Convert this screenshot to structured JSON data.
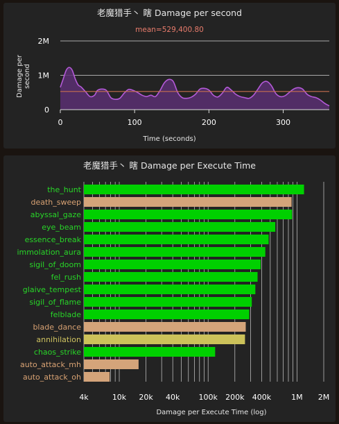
{
  "chart_data": [
    {
      "type": "area",
      "title": "老魔猎手丶 瞎 Damage per second",
      "subtitle_prefix": "mean=",
      "mean_text": "529,400.80",
      "mean": 529400.8,
      "xlabel": "Time (seconds)",
      "ylabel": "Damage per second",
      "xlim": [
        0,
        362
      ],
      "ylim": [
        0,
        2000000
      ],
      "x_ticks": [
        0,
        100,
        200,
        300
      ],
      "x_tick_labels": [
        "0",
        "100",
        "200",
        "300"
      ],
      "y_ticks": [
        0,
        1000000,
        2000000
      ],
      "y_tick_labels": [
        "0",
        "1M",
        "2M"
      ],
      "grid": "horizontal",
      "colors": {
        "line": "#b45ad8",
        "fill": "#5a2f72",
        "mean": "#c8704f",
        "grid": "#d9d9d9"
      },
      "x": [
        0,
        4,
        8,
        12,
        16,
        20,
        24,
        28,
        34,
        40,
        46,
        50,
        56,
        62,
        68,
        74,
        80,
        86,
        92,
        98,
        104,
        110,
        116,
        122,
        128,
        134,
        140,
        146,
        152,
        158,
        164,
        170,
        176,
        182,
        188,
        194,
        200,
        206,
        212,
        218,
        224,
        230,
        236,
        242,
        248,
        254,
        260,
        266,
        272,
        278,
        284,
        290,
        296,
        302,
        308,
        314,
        320,
        326,
        332,
        338,
        344,
        350,
        356,
        362
      ],
      "y": [
        650000,
        900000,
        1150000,
        1230000,
        1150000,
        900000,
        720000,
        660000,
        520000,
        380000,
        420000,
        560000,
        600000,
        560000,
        350000,
        300000,
        330000,
        480000,
        590000,
        560000,
        500000,
        420000,
        380000,
        420000,
        380000,
        550000,
        780000,
        880000,
        820000,
        500000,
        350000,
        330000,
        360000,
        450000,
        600000,
        620000,
        570000,
        420000,
        370000,
        480000,
        650000,
        570000,
        450000,
        380000,
        350000,
        330000,
        420000,
        600000,
        780000,
        820000,
        700000,
        470000,
        380000,
        400000,
        500000,
        600000,
        640000,
        600000,
        450000,
        380000,
        350000,
        280000,
        180000,
        110000
      ]
    },
    {
      "type": "bar",
      "orientation": "horizontal",
      "title": "老魔猎手丶 瞎 Damage per Execute Time",
      "xlabel": "Damage per Execute Time (log)",
      "xscale": "log",
      "xlim": [
        4000,
        2000000
      ],
      "x_ticks": [
        4000,
        10000,
        20000,
        40000,
        100000,
        200000,
        400000,
        1000000,
        2000000
      ],
      "x_tick_labels": [
        "4k",
        "10k",
        "20k",
        "40k",
        "100k",
        "200k",
        "400k",
        "1M",
        "2M"
      ],
      "grid": "vertical",
      "categories": [
        "the_hunt",
        "death_sweep",
        "abyssal_gaze",
        "eye_beam",
        "essence_break",
        "immolation_aura",
        "sigil_of_doom",
        "fel_rush",
        "glaive_tempest",
        "sigil_of_flame",
        "felblade",
        "blade_dance",
        "annihilation",
        "chaos_strike",
        "auto_attack_mh",
        "auto_attack_oh"
      ],
      "values": [
        1200000,
        870000,
        880000,
        570000,
        480000,
        440000,
        390000,
        360000,
        340000,
        310000,
        290000,
        265000,
        260000,
        120000,
        16500,
        7800
      ],
      "bar_colors": [
        "#00d000",
        "#d4a47a",
        "#00d000",
        "#00d000",
        "#00d000",
        "#00d000",
        "#00d000",
        "#00d000",
        "#00d000",
        "#00d000",
        "#00d000",
        "#d4a47a",
        "#ccc25a",
        "#00d000",
        "#d4a47a",
        "#d4a47a"
      ],
      "label_colors": [
        "#28d628",
        "#d8a273",
        "#28d628",
        "#28d628",
        "#28d628",
        "#28d628",
        "#28d628",
        "#28d628",
        "#28d628",
        "#28d628",
        "#28d628",
        "#d8a273",
        "#cfc360",
        "#28d628",
        "#d8a273",
        "#d8a273"
      ]
    }
  ]
}
